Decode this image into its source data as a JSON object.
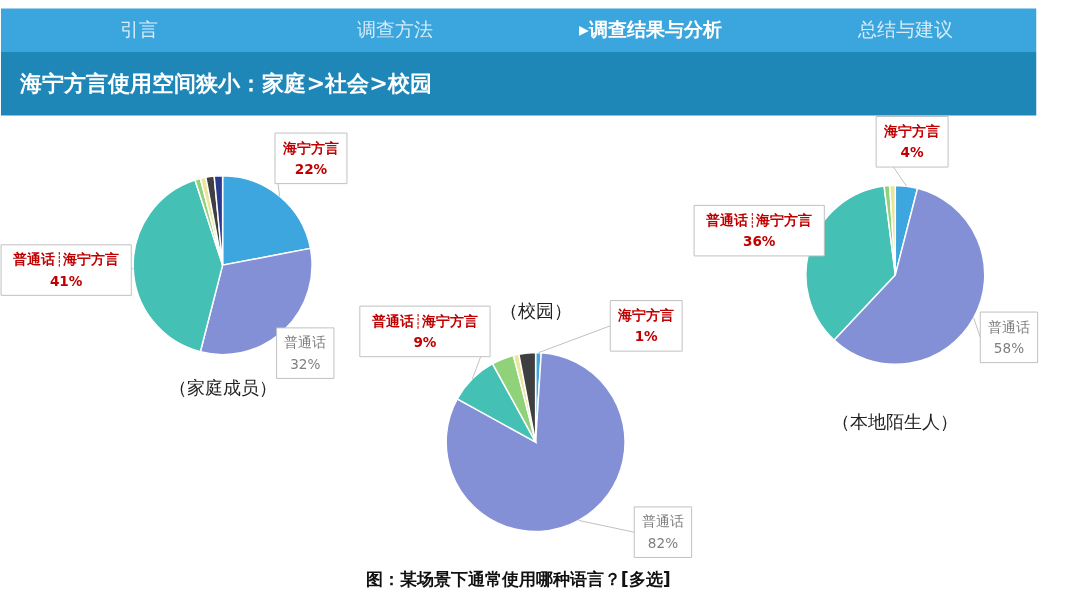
{
  "chart_data": [
    {
      "type": "pie",
      "title": "（家庭成员）",
      "categories": [
        "海宁方言",
        "普通话",
        "普通话┊海宁方言",
        null,
        null,
        null,
        null
      ],
      "values": [
        22,
        32,
        41,
        1,
        1,
        1.5,
        1.5
      ],
      "colors": [
        "#3ea6de",
        "#8390d6",
        "#45c0b4",
        "#8fd27a",
        "#e9e59a",
        "#3f3f3f",
        "#2b3a8f"
      ],
      "value_labels": [
        "22%",
        "32%",
        "41%",
        null,
        null,
        null,
        null
      ],
      "annotations": [
        "引言",
        "调查方法",
        "▸调查结果与分析",
        "总结与建议",
        "海宁方言使用空间狭小：家庭>社会>校园",
        "图：某场景下通常使用哪种语言？[多选]"
      ]
    },
    {
      "type": "pie",
      "title": "（校园）",
      "categories": [
        "海宁方言",
        "普通话",
        "普通话┊海宁方言",
        null,
        null,
        null
      ],
      "values": [
        1,
        82,
        9,
        4,
        1,
        3
      ],
      "colors": [
        "#3ea6de",
        "#8390d6",
        "#45c0b4",
        "#8fd27a",
        "#e9e59a",
        "#3f3f3f"
      ],
      "value_labels": [
        "1%",
        "82%",
        "9%",
        null,
        null,
        null
      ]
    },
    {
      "type": "pie",
      "title": "（本地陌生人）",
      "categories": [
        "海宁方言",
        "普通话",
        "普通话┊海宁方言",
        null,
        null
      ],
      "values": [
        4,
        58,
        36,
        1,
        1
      ],
      "colors": [
        "#3ea6de",
        "#8390d6",
        "#45c0b4",
        "#8fd27a",
        "#e9e59a"
      ],
      "value_labels": [
        "4%",
        "58%",
        "36%",
        null,
        null
      ]
    }
  ]
}
